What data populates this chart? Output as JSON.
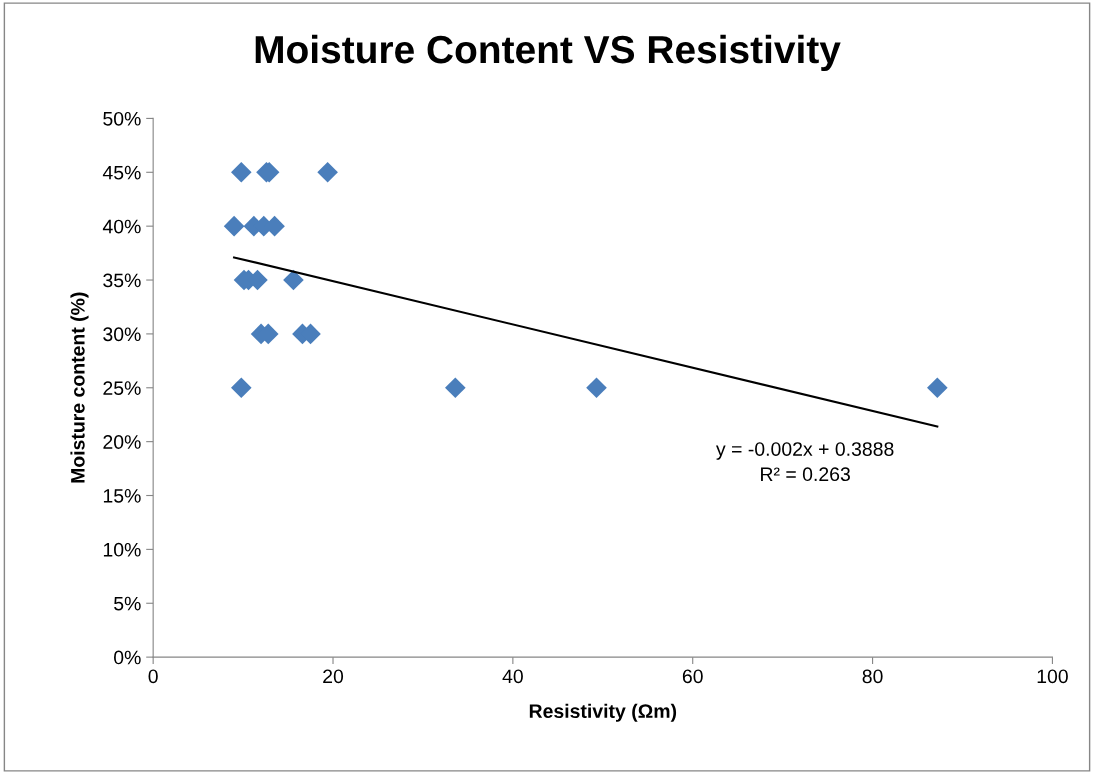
{
  "chart_data": {
    "type": "scatter",
    "title": "Moisture Content VS Resistivity",
    "xlabel": "Resistivity (Ωm)",
    "ylabel": "Moisture content (%)",
    "series": [
      {
        "color": "#4a7ebb",
        "marker": "diamond",
        "x": [
          9.8,
          12.6,
          12.9,
          19.4,
          9.0,
          11.2,
          12.3,
          13.5,
          10.1,
          10.6,
          11.6,
          15.6,
          12.0,
          12.8,
          16.6,
          17.5,
          9.8,
          33.6,
          49.3,
          87.2
        ],
        "values": [
          45,
          45,
          45,
          45,
          40,
          40,
          40,
          40,
          35,
          35,
          35,
          35,
          30,
          30,
          30,
          30,
          25,
          25,
          25,
          25
        ]
      },
      {
        "type": "line",
        "color": "#000000",
        "marker": "none",
        "line_style": "solid",
        "x": [
          9.0,
          87.2
        ],
        "values": [
          37.1,
          21.4
        ]
      }
    ],
    "annotations": [
      "y = -0.002x + 0.3888\nR² = 0.263"
    ],
    "xlim": [
      0,
      100
    ],
    "xticks": [
      0,
      20,
      40,
      60,
      80,
      100
    ],
    "ylim": [
      0,
      50
    ],
    "yticks": [
      {
        "value": 0,
        "label": "0%"
      },
      {
        "value": 5,
        "label": "5%"
      },
      {
        "value": 10,
        "label": "10%"
      },
      {
        "value": 15,
        "label": "15%"
      },
      {
        "value": 20,
        "label": "20%"
      },
      {
        "value": 25,
        "label": "25%"
      },
      {
        "value": 30,
        "label": "30%"
      },
      {
        "value": 35,
        "label": "35%"
      },
      {
        "value": 40,
        "label": "40%"
      },
      {
        "value": 45,
        "label": "45%"
      },
      {
        "value": 50,
        "label": "50%"
      }
    ],
    "grid": false,
    "legend": false
  }
}
